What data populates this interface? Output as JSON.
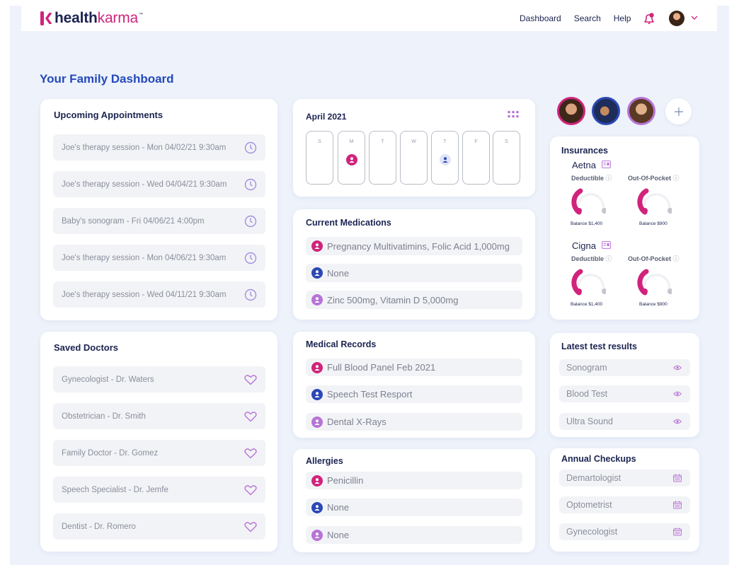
{
  "header": {
    "logo_bold": "health",
    "logo_light": "karma",
    "logo_tm": "™",
    "nav": [
      "Dashboard",
      "Search",
      "Help"
    ]
  },
  "page_title": "Your Family Dashboard",
  "appointments": {
    "title": "Upcoming Appointments",
    "items": [
      "Joe's therapy session - Mon 04/02/21 9:30am",
      "Joe's therapy session - Wed 04/04/21 9:30am",
      "Baby's sonogram - Fri 04/06/21 4:00pm",
      "Joe's therapy session - Mon 04/06/21 9:30am",
      "Joe's therapy session - Wed 04/11/21 9:30am"
    ]
  },
  "doctors": {
    "title": "Saved Doctors",
    "items": [
      "Gynecologist - Dr. Waters",
      "Obstetrician - Dr. Smith",
      "Family Doctor - Dr. Gomez",
      "Speech Specialist - Dr. Jemfe",
      "Dentist - Dr. Romero"
    ]
  },
  "calendar": {
    "title": "April 2021",
    "days": [
      "S",
      "M",
      "T",
      "W",
      "T",
      "F",
      "S"
    ]
  },
  "medications": {
    "title": "Current Medications",
    "items": [
      "Pregnancy Multivatimins, Folic Acid 1,000mg",
      "None",
      "Zinc 500mg, Vitamin D 5,000mg"
    ]
  },
  "records": {
    "title": "Medical Records",
    "items": [
      "Full Blood Panel Feb 2021",
      "Speech Test Resport",
      "Dental X-Rays"
    ]
  },
  "allergies": {
    "title": "Allergies",
    "items": [
      "Penicillin",
      "None",
      "None"
    ]
  },
  "insurances": {
    "title": "Insurances",
    "plans": [
      {
        "name": "Aetna",
        "deductible_label": "Deductible",
        "oop_label": "Out-Of-Pocket",
        "deductible_balance": "Balance $1,400",
        "oop_balance": "Balance $900"
      },
      {
        "name": "Cigna",
        "deductible_label": "Deductible",
        "oop_label": "Out-Of-Pocket",
        "deductible_balance": "Balance $1,400",
        "oop_balance": "Balance $900"
      }
    ]
  },
  "tests": {
    "title": "Latest test results",
    "items": [
      "Sonogram",
      "Blood Test",
      "Ultra Sound"
    ]
  },
  "checkups": {
    "title": "Annual Checkups",
    "items": [
      "Demartologist",
      "Optometrist",
      "Gynecologist"
    ]
  },
  "colors": {
    "pink": "#d0247c",
    "blue": "#2b48b5",
    "purple": "#b873d6",
    "lavender_icon": "#a48fe0",
    "title_blue": "#2549b8"
  }
}
